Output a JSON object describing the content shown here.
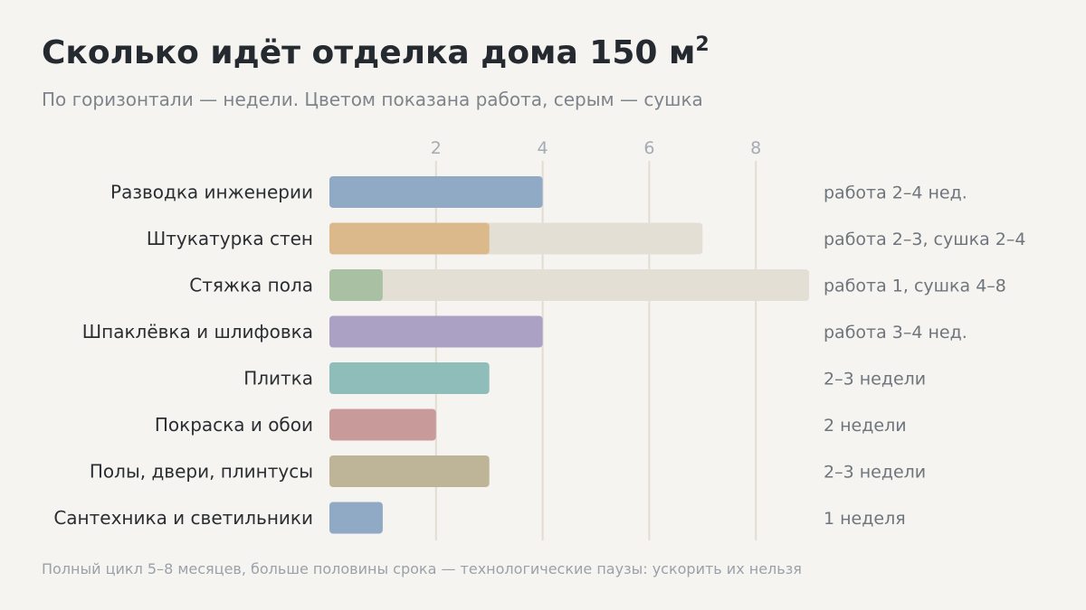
{
  "title": "Сколько идёт отделка дома 150 м",
  "title_sup": "2",
  "subtitle": "По горизонтали — недели. Цветом показана работа, серым — сушка",
  "footnote": "Полный цикл 5–8 месяцев, больше половины срока — технологические паузы: ускорить их нельзя",
  "colors": {
    "drying": "#e4dfd5",
    "grid": "#e2ddd3"
  },
  "chart_data": {
    "type": "bar",
    "orientation": "horizontal",
    "stacked": true,
    "xlabel": "",
    "ylabel": "",
    "xlim": [
      0,
      9
    ],
    "xticks": [
      2,
      4,
      6,
      8
    ],
    "grid": true,
    "categories": [
      "Разводка инженерии",
      "Штукатурка стен",
      "Стяжка пола",
      "Шпаклёвка и шлифовка",
      "Плитка",
      "Покраска и обои",
      "Полы, двери, плинтусы",
      "Сантехника и светильники"
    ],
    "work": [
      4,
      3,
      1,
      4,
      3,
      2,
      3,
      1
    ],
    "drying": [
      0,
      4,
      8,
      0,
      0,
      0,
      0,
      0
    ],
    "work_colors": [
      "#90a9c5",
      "#dbb98a",
      "#a9c1a2",
      "#aaa1c4",
      "#8fbeba",
      "#c89b9a",
      "#beb498",
      "#90a9c5"
    ],
    "annotations": [
      "работа 2–4 нед.",
      "работа 2–3, сушка 2–4",
      "работа 1, сушка 4–8",
      "работа 3–4 нед.",
      "2–3 недели",
      "2 недели",
      "2–3 недели",
      "1 неделя"
    ]
  }
}
